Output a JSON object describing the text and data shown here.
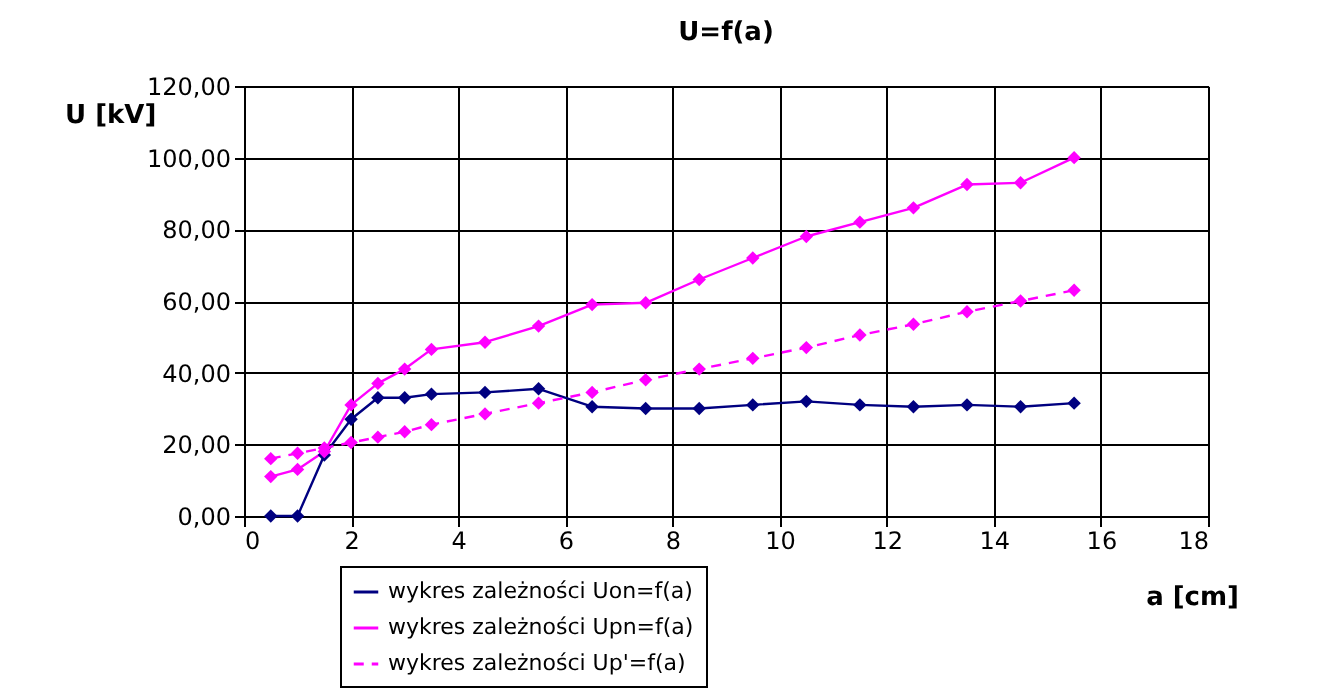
{
  "chart_data": {
    "type": "line",
    "title": "U=f(a)",
    "xlabel": "a [cm]",
    "ylabel": "U [kV]",
    "x": [
      0.5,
      1,
      1.5,
      2,
      2.5,
      3,
      3.5,
      4.5,
      5.5,
      6.5,
      7.5,
      8.5,
      9.5,
      10.5,
      11.5,
      12.5,
      13.5,
      14.5,
      15.5
    ],
    "series": [
      {
        "name": "wykres zależności Uon=f(a)",
        "color": "#000080",
        "line_style": "solid",
        "values": [
          0,
          0,
          17,
          27,
          33,
          33,
          34,
          34.5,
          35.5,
          30.5,
          30,
          30,
          31,
          32,
          31,
          30.5,
          31,
          30.5,
          31.5
        ]
      },
      {
        "name": "wykres zależności Upn=f(a)",
        "color": "#ff00ff",
        "line_style": "solid",
        "values": [
          11,
          13,
          18,
          31,
          37,
          41,
          46.5,
          48.5,
          53,
          59,
          59.5,
          66,
          72,
          78,
          82,
          86,
          92.5,
          93,
          100
        ]
      },
      {
        "name": "wykres zależności Up'=f(a)",
        "color": "#ff00ff",
        "line_style": "dashed",
        "values": [
          16,
          17.5,
          19,
          20.5,
          22,
          23.5,
          25.5,
          28.5,
          31.5,
          34.5,
          38,
          41,
          44,
          47,
          50.5,
          53.5,
          57,
          60,
          63
        ]
      }
    ],
    "xlim": [
      0,
      18
    ],
    "xticks": [
      0,
      2,
      4,
      6,
      8,
      10,
      12,
      14,
      16,
      18
    ],
    "ylim": [
      0,
      120
    ],
    "yticks": [
      {
        "value": 0,
        "label": "0,00"
      },
      {
        "value": 20,
        "label": "20,00"
      },
      {
        "value": 40,
        "label": "40,00"
      },
      {
        "value": 60,
        "label": "60,00"
      },
      {
        "value": 80,
        "label": "80,00"
      },
      {
        "value": 100,
        "label": "100,00"
      },
      {
        "value": 120,
        "label": "120,00"
      }
    ],
    "grid": true,
    "legend": "bottom",
    "marker": "diamond"
  }
}
